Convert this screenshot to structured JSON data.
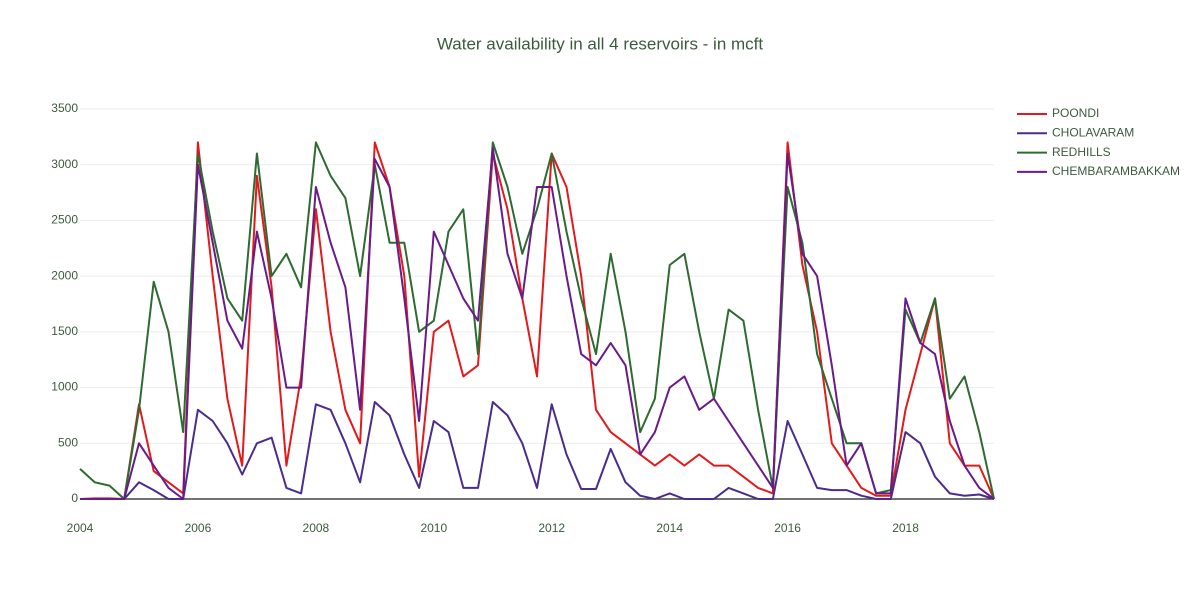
{
  "chart_data": {
    "type": "line",
    "title": "Water availability in all 4 reservoirs - in mcft",
    "x": [
      2004,
      2004.25,
      2004.5,
      2004.75,
      2005,
      2005.25,
      2005.5,
      2005.75,
      2006,
      2006.25,
      2006.5,
      2006.75,
      2007,
      2007.25,
      2007.5,
      2007.75,
      2008,
      2008.25,
      2008.5,
      2008.75,
      2009,
      2009.25,
      2009.5,
      2009.75,
      2010,
      2010.25,
      2010.5,
      2010.75,
      2011,
      2011.25,
      2011.5,
      2011.75,
      2012,
      2012.25,
      2012.5,
      2012.75,
      2013,
      2013.25,
      2013.5,
      2013.75,
      2014,
      2014.25,
      2014.5,
      2014.75,
      2015,
      2015.25,
      2015.5,
      2015.75,
      2016,
      2016.25,
      2016.5,
      2016.75,
      2017,
      2017.25,
      2017.5,
      2017.75,
      2018,
      2018.25,
      2018.5,
      2018.75,
      2019,
      2019.25,
      2019.5
    ],
    "series": [
      {
        "name": "POONDI",
        "color": "#e31a1c",
        "values": [
          0,
          5,
          5,
          0,
          850,
          250,
          150,
          50,
          3200,
          2000,
          900,
          300,
          2900,
          1900,
          300,
          1100,
          2600,
          1500,
          800,
          500,
          3200,
          2800,
          2000,
          200,
          1500,
          1600,
          1100,
          1200,
          3100,
          2600,
          1800,
          1100,
          3100,
          2800,
          2000,
          800,
          600,
          500,
          400,
          300,
          400,
          300,
          400,
          300,
          300,
          200,
          100,
          50,
          3200,
          2100,
          1500,
          500,
          300,
          100,
          30,
          30,
          800,
          1300,
          1800,
          500,
          300,
          300,
          0
        ]
      },
      {
        "name": "CHOLAVARAM",
        "color": "#4b2c8c",
        "values": [
          0,
          0,
          0,
          0,
          150,
          80,
          0,
          0,
          800,
          700,
          500,
          220,
          500,
          550,
          100,
          50,
          850,
          800,
          500,
          150,
          870,
          750,
          400,
          100,
          700,
          600,
          100,
          100,
          870,
          750,
          500,
          100,
          850,
          400,
          90,
          90,
          450,
          150,
          30,
          0,
          50,
          0,
          0,
          0,
          100,
          50,
          0,
          0,
          700,
          400,
          100,
          80,
          80,
          30,
          0,
          0,
          600,
          500,
          200,
          50,
          30,
          40,
          0
        ]
      },
      {
        "name": "REDHILLS",
        "color": "#2e6b30",
        "values": [
          270,
          150,
          120,
          0,
          800,
          1950,
          1500,
          600,
          3100,
          2400,
          1800,
          1600,
          3100,
          2000,
          2200,
          1900,
          3200,
          2900,
          2700,
          2000,
          3000,
          2300,
          2300,
          1500,
          1600,
          2400,
          2600,
          1300,
          3200,
          2800,
          2200,
          2600,
          3100,
          2400,
          1800,
          1300,
          2200,
          1500,
          600,
          900,
          2100,
          2200,
          1500,
          900,
          1700,
          1600,
          800,
          100,
          2800,
          2300,
          1300,
          900,
          500,
          500,
          50,
          80,
          1700,
          1400,
          1800,
          900,
          1100,
          600,
          0
        ]
      },
      {
        "name": "CHEMBARAMBAKKAM",
        "color": "#6a1b8a",
        "values": [
          0,
          0,
          0,
          0,
          500,
          300,
          100,
          0,
          3000,
          2300,
          1600,
          1350,
          2400,
          1800,
          1000,
          1000,
          2800,
          2300,
          1900,
          800,
          3050,
          2800,
          1800,
          700,
          2400,
          2100,
          1800,
          1600,
          3150,
          2200,
          1800,
          2800,
          2800,
          2000,
          1300,
          1200,
          1400,
          1200,
          400,
          600,
          1000,
          1100,
          800,
          900,
          700,
          500,
          300,
          100,
          3100,
          2200,
          2000,
          1200,
          300,
          500,
          50,
          50,
          1800,
          1400,
          1300,
          700,
          300,
          100,
          0
        ]
      }
    ],
    "xlim": [
      2004,
      2019.5
    ],
    "xticks": [
      2004,
      2006,
      2008,
      2010,
      2012,
      2014,
      2016,
      2018
    ],
    "ylim": [
      -140,
      3550
    ],
    "yticks": [
      0,
      500,
      1000,
      1500,
      2000,
      2500,
      3000,
      3500
    ],
    "grid": true,
    "legend": "right"
  }
}
